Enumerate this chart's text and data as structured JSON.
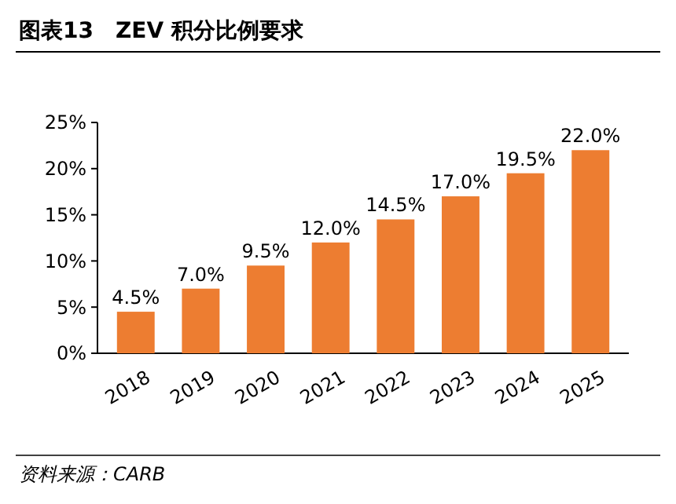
{
  "chart_data": {
    "type": "bar",
    "title": "图表13　ZEV 积分比例要求",
    "categories": [
      "2018",
      "2019",
      "2020",
      "2021",
      "2022",
      "2023",
      "2024",
      "2025"
    ],
    "values": [
      4.5,
      7.0,
      9.5,
      12.0,
      14.5,
      17.0,
      19.5,
      22.0
    ],
    "value_labels": [
      "4.5%",
      "7.0%",
      "9.5%",
      "12.0%",
      "14.5%",
      "17.0%",
      "19.5%",
      "22.0%"
    ],
    "color": "#ed7d31",
    "ylim": [
      0,
      25
    ],
    "yticks": [
      {
        "value": 0,
        "label": "0%"
      },
      {
        "value": 5,
        "label": "5%"
      },
      {
        "value": 10,
        "label": "10%"
      },
      {
        "value": 15,
        "label": "15%"
      },
      {
        "value": 20,
        "label": "20%"
      },
      {
        "value": 25,
        "label": "25%"
      }
    ],
    "grid": false,
    "annotations": [
      "资料来源：CARB"
    ]
  }
}
